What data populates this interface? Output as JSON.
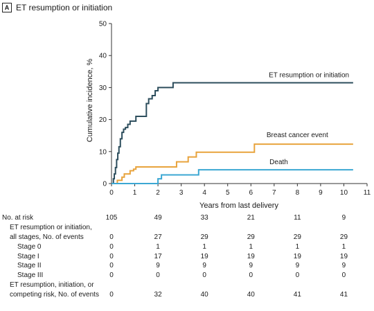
{
  "panel": {
    "letter": "A",
    "title": "ET resumption or initiation"
  },
  "chart_data": {
    "type": "line",
    "step": true,
    "title": "",
    "xlabel": "Years from last delivery",
    "ylabel": "Cumulative incidence, %",
    "xlim": [
      0,
      11
    ],
    "ylim": [
      0,
      50
    ],
    "xticks": [
      0,
      1,
      2,
      3,
      4,
      5,
      6,
      7,
      8,
      9,
      10,
      11
    ],
    "yticks": [
      0,
      10,
      20,
      30,
      40,
      50
    ],
    "grid": false,
    "legend": "inline labels",
    "series": [
      {
        "name": "ET resumption or initiation",
        "color": "#2c4d5c",
        "x": [
          0,
          0.08,
          0.12,
          0.17,
          0.22,
          0.27,
          0.32,
          0.38,
          0.45,
          0.52,
          0.6,
          0.7,
          0.8,
          1.05,
          1.5,
          1.6,
          1.75,
          1.88,
          2.0,
          2.12,
          2.65,
          10.4
        ],
        "y": [
          0,
          1.5,
          3,
          5,
          7.5,
          9.5,
          11.5,
          14,
          16,
          17,
          17.5,
          18.5,
          19.5,
          21,
          25,
          26.5,
          27.5,
          29,
          30,
          30,
          31.5,
          31.5
        ]
      },
      {
        "name": "Breast cancer event",
        "color": "#e8a33c",
        "x": [
          0,
          0.25,
          0.45,
          0.55,
          0.8,
          0.95,
          1.05,
          2.8,
          3.3,
          3.65,
          6.15,
          10.4
        ],
        "y": [
          0,
          1,
          2,
          3,
          4,
          4.5,
          5.2,
          6.8,
          8.3,
          9.8,
          12.3,
          12.3
        ]
      },
      {
        "name": "Death",
        "color": "#3ba7d3",
        "x": [
          0,
          2.0,
          2.15,
          3.75,
          10.4
        ],
        "y": [
          0,
          1.5,
          2.7,
          4.3,
          4.3
        ]
      }
    ],
    "annotations": [
      {
        "text": "ET resumption or initiation",
        "series": "ET resumption or initiation"
      },
      {
        "text": "Breast cancer event",
        "series": "Breast cancer event"
      },
      {
        "text": "Death",
        "series": "Death"
      }
    ]
  },
  "risk_table": {
    "header": "No. at risk",
    "times": [
      0,
      2,
      4,
      6,
      8,
      10
    ],
    "rows": [
      {
        "label": "No. at risk",
        "indent": 0,
        "values": [
          "105",
          "49",
          "33",
          "21",
          "11",
          "9"
        ]
      },
      {
        "label": "ET resumption or initiation,",
        "indent": 1,
        "values": []
      },
      {
        "label": "all stages, No. of events",
        "indent": 1,
        "values": [
          "0",
          "27",
          "29",
          "29",
          "29",
          "29"
        ]
      },
      {
        "label": "Stage 0",
        "indent": 2,
        "values": [
          "0",
          "1",
          "1",
          "1",
          "1",
          "1"
        ]
      },
      {
        "label": "Stage I",
        "indent": 2,
        "values": [
          "0",
          "17",
          "19",
          "19",
          "19",
          "19"
        ]
      },
      {
        "label": "Stage II",
        "indent": 2,
        "values": [
          "0",
          "9",
          "9",
          "9",
          "9",
          "9"
        ]
      },
      {
        "label": "Stage III",
        "indent": 2,
        "values": [
          "0",
          "0",
          "0",
          "0",
          "0",
          "0"
        ]
      },
      {
        "label": "ET resumption, initiation, or",
        "indent": 1,
        "values": []
      },
      {
        "label": "competing risk, No. of events",
        "indent": 1,
        "values": [
          "0",
          "32",
          "40",
          "40",
          "41",
          "41"
        ]
      }
    ]
  }
}
